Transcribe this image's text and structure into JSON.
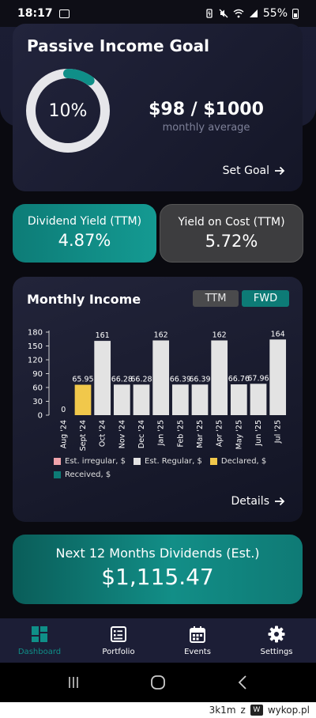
{
  "status_bar": {
    "time": "18:17",
    "battery_pct": "55%"
  },
  "goal_card": {
    "title": "Passive Income Goal",
    "progress_label": "10%",
    "progress_fraction": 0.1,
    "amount": "$98 / $1000",
    "subtitle": "monthly average",
    "set_goal_label": "Set Goal"
  },
  "dividend_yield": {
    "label": "Dividend Yield (TTM)",
    "value": "4.87%"
  },
  "yield_on_cost": {
    "label": "Yield on Cost (TTM)",
    "value": "5.72%"
  },
  "monthly_income": {
    "title": "Monthly Income",
    "toggle_ttm": "TTM",
    "toggle_fwd": "FWD",
    "legend": {
      "irregular": "Est. irregular, $",
      "regular": "Est. Regular, $",
      "declared": "Declared, $",
      "received": "Received, $"
    },
    "details_label": "Details"
  },
  "next_12_months": {
    "label": "Next 12 Months Dividends (Est.)",
    "value": "$1,115.47"
  },
  "tabs": [
    {
      "label": "Dashboard",
      "icon": "dashboard-icon"
    },
    {
      "label": "Portfolio",
      "icon": "portfolio-icon"
    },
    {
      "label": "Events",
      "icon": "calendar-icon"
    },
    {
      "label": "Settings",
      "icon": "gear-icon"
    }
  ],
  "watermark": {
    "user": "3k1m",
    "separator": "z",
    "site": "wykop.pl"
  },
  "colors": {
    "accent_teal": "#0f8f88",
    "declared_yellow": "#f1c84b",
    "regular_gray": "#e3e3e3",
    "irregular_pink": "#f0a3ab",
    "received_teal": "#0d7b76"
  },
  "chart_data": {
    "type": "bar",
    "categories": [
      "Aug '24",
      "Sept '24",
      "Oct '24",
      "Nov '24",
      "Dec '24",
      "Jan '25",
      "Feb '25",
      "Mar '25",
      "Apr '25",
      "May '25",
      "Jun '25",
      "Jul '25"
    ],
    "value_labels": [
      "0",
      "65.95",
      "161",
      "66.28",
      "66.28",
      "162",
      "66.39",
      "66.39",
      "162",
      "66.76",
      "67.96",
      "164"
    ],
    "values": [
      0,
      65.95,
      161,
      66.28,
      66.28,
      162,
      66.39,
      66.39,
      162,
      66.76,
      67.96,
      164
    ],
    "series_type": [
      "regular",
      "declared",
      "regular",
      "regular",
      "regular",
      "regular",
      "regular",
      "regular",
      "regular",
      "regular",
      "regular",
      "regular"
    ],
    "yticks": [
      "0",
      "30",
      "60",
      "90",
      "120",
      "150",
      "180"
    ],
    "ylim": [
      0,
      180
    ],
    "grid": false,
    "legend_placement": "bottom"
  }
}
